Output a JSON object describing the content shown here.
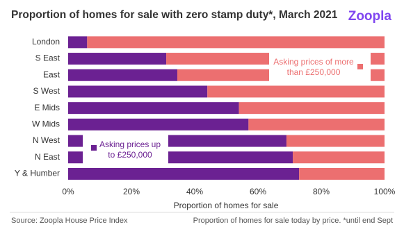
{
  "chart_data": {
    "type": "stacked-barh",
    "title": "Proportion of homes for sale with zero stamp duty*, March 2021",
    "logo": "Zoopla",
    "categories": [
      "London",
      "S East",
      "East",
      "S West",
      "E Mids",
      "W Mids",
      "N West",
      "N East",
      "Y & Humber"
    ],
    "series": [
      {
        "name": "Asking prices up to £250,000",
        "color": "#6b2192",
        "values": [
          6,
          31,
          34.5,
          44,
          54,
          57,
          69,
          71,
          73
        ]
      },
      {
        "name": "Asking prices of more than £250,000",
        "color": "#ec6f70",
        "values": [
          94,
          69,
          65.5,
          56,
          46,
          43,
          31,
          29,
          27
        ]
      }
    ],
    "xlim": [
      0,
      100
    ],
    "xticks": [
      {
        "value": 0,
        "label": "0%"
      },
      {
        "value": 20,
        "label": "20%"
      },
      {
        "value": 40,
        "label": "40%"
      },
      {
        "value": 60,
        "label": "60%"
      },
      {
        "value": 80,
        "label": "80%"
      },
      {
        "value": 100,
        "label": "100%"
      }
    ],
    "xlabel": "Proportion of homes for sale",
    "source": "Source: Zoopla House Price Index",
    "note": "Proportion of homes for sale today by price. *until end Sept"
  }
}
